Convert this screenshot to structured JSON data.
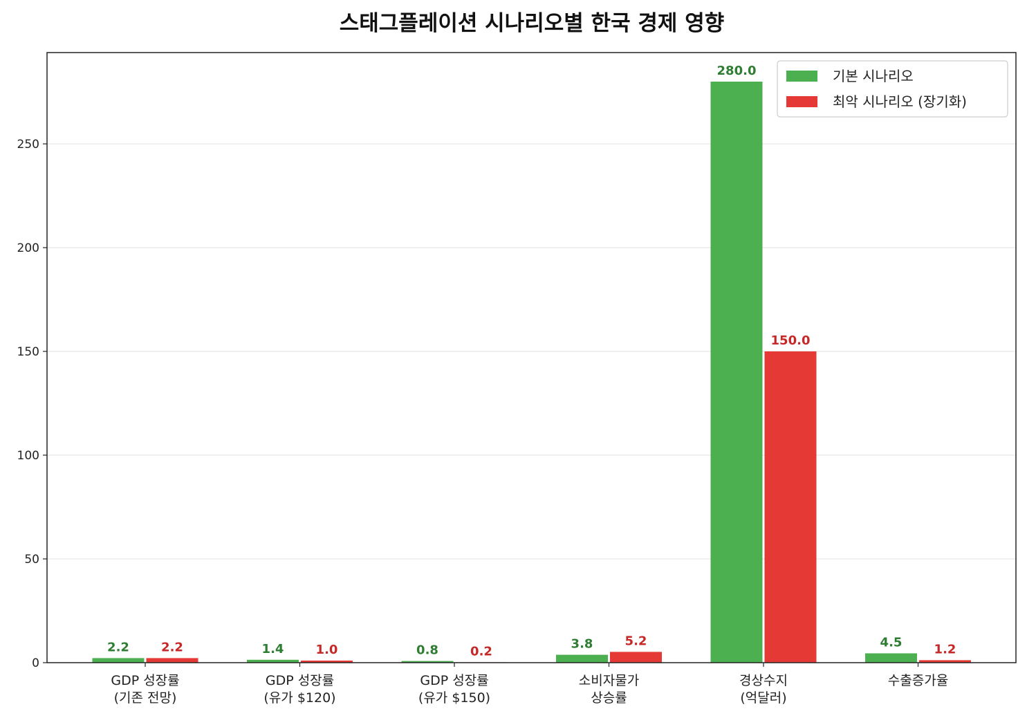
{
  "chart_data": {
    "type": "bar",
    "title": "스태그플레이션 시나리오별 한국 경제 영향",
    "categories": [
      [
        "GDP 성장률",
        "(기존 전망)"
      ],
      [
        "GDP 성장률",
        "(유가 $120)"
      ],
      [
        "GDP 성장률",
        "(유가 $150)"
      ],
      [
        "소비자물가",
        "상승률"
      ],
      [
        "경상수지",
        "(억달러)"
      ],
      [
        "수출증가율"
      ]
    ],
    "series": [
      {
        "name": "기본 시나리오",
        "color": "#4caf50",
        "label_color": "#2e7d32",
        "values": [
          2.2,
          1.4,
          0.8,
          3.8,
          280.0,
          4.5
        ]
      },
      {
        "name": "최악 시나리오 (장기화)",
        "color": "#e53935",
        "label_color": "#c62828",
        "values": [
          2.2,
          1.0,
          0.2,
          5.2,
          150.0,
          1.2
        ]
      }
    ],
    "ylim": [
      0,
      294
    ],
    "yticks": [
      0,
      50,
      100,
      150,
      200,
      250
    ],
    "grid": "y",
    "legend": "top-right",
    "xlabel": "",
    "ylabel": ""
  }
}
